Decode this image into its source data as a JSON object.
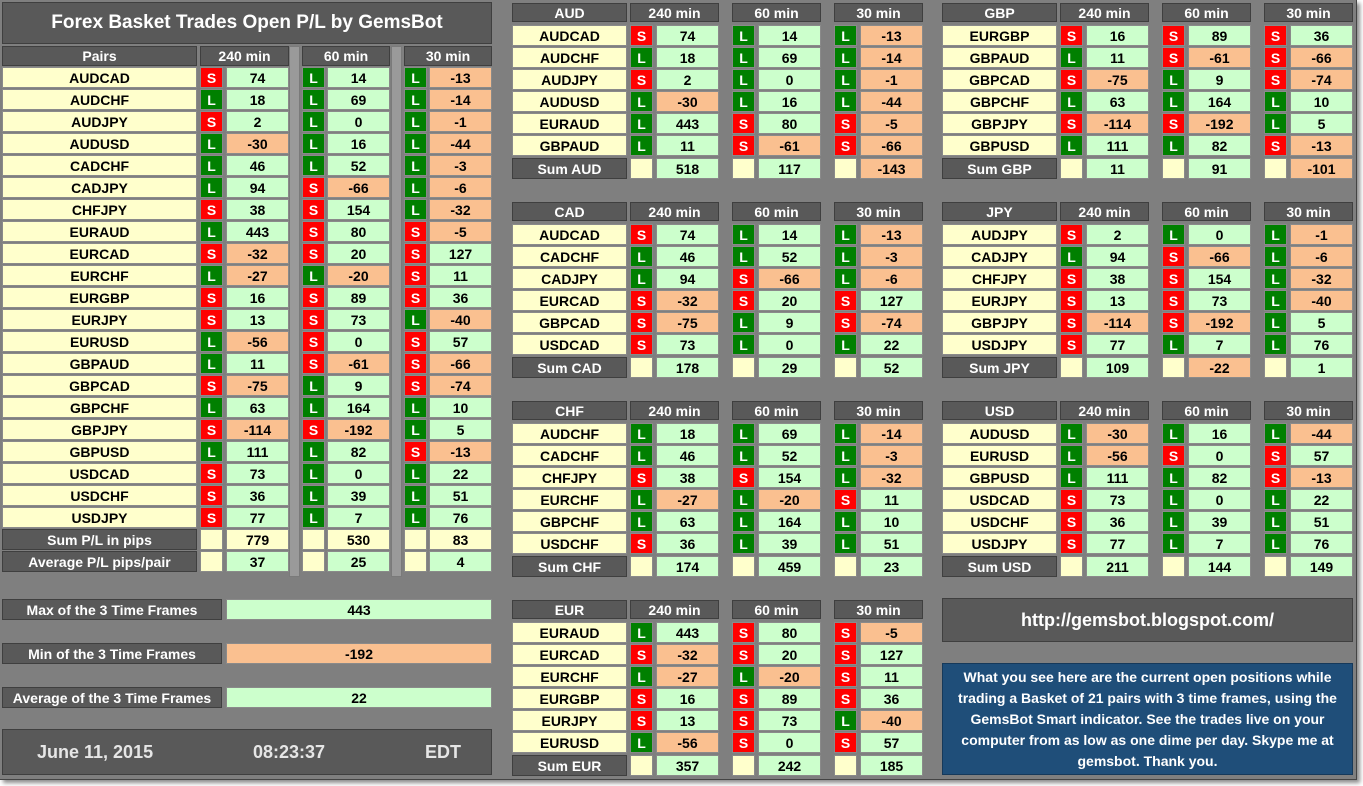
{
  "title": "Forex Basket Trades Open P/L by GemsBot",
  "timeframes": [
    "240 min",
    "60 min",
    "30 min"
  ],
  "main": {
    "header": "Pairs",
    "rows": [
      {
        "pair": "AUDCAD",
        "s": [
          "S",
          "L",
          "L"
        ],
        "v": [
          "74",
          "14",
          "-13"
        ]
      },
      {
        "pair": "AUDCHF",
        "s": [
          "L",
          "L",
          "L"
        ],
        "v": [
          "18",
          "69",
          "-14"
        ]
      },
      {
        "pair": "AUDJPY",
        "s": [
          "S",
          "L",
          "L"
        ],
        "v": [
          "2",
          "0",
          "-1"
        ]
      },
      {
        "pair": "AUDUSD",
        "s": [
          "L",
          "L",
          "L"
        ],
        "v": [
          "-30",
          "16",
          "-44"
        ]
      },
      {
        "pair": "CADCHF",
        "s": [
          "L",
          "L",
          "L"
        ],
        "v": [
          "46",
          "52",
          "-3"
        ]
      },
      {
        "pair": "CADJPY",
        "s": [
          "L",
          "S",
          "L"
        ],
        "v": [
          "94",
          "-66",
          "-6"
        ]
      },
      {
        "pair": "CHFJPY",
        "s": [
          "S",
          "S",
          "L"
        ],
        "v": [
          "38",
          "154",
          "-32"
        ]
      },
      {
        "pair": "EURAUD",
        "s": [
          "L",
          "S",
          "S"
        ],
        "v": [
          "443",
          "80",
          "-5"
        ]
      },
      {
        "pair": "EURCAD",
        "s": [
          "S",
          "S",
          "S"
        ],
        "v": [
          "-32",
          "20",
          "127"
        ]
      },
      {
        "pair": "EURCHF",
        "s": [
          "L",
          "L",
          "S"
        ],
        "v": [
          "-27",
          "-20",
          "11"
        ]
      },
      {
        "pair": "EURGBP",
        "s": [
          "S",
          "S",
          "S"
        ],
        "v": [
          "16",
          "89",
          "36"
        ]
      },
      {
        "pair": "EURJPY",
        "s": [
          "S",
          "S",
          "L"
        ],
        "v": [
          "13",
          "73",
          "-40"
        ]
      },
      {
        "pair": "EURUSD",
        "s": [
          "L",
          "S",
          "S"
        ],
        "v": [
          "-56",
          "0",
          "57"
        ]
      },
      {
        "pair": "GBPAUD",
        "s": [
          "L",
          "S",
          "S"
        ],
        "v": [
          "11",
          "-61",
          "-66"
        ]
      },
      {
        "pair": "GBPCAD",
        "s": [
          "S",
          "L",
          "S"
        ],
        "v": [
          "-75",
          "9",
          "-74"
        ]
      },
      {
        "pair": "GBPCHF",
        "s": [
          "L",
          "L",
          "L"
        ],
        "v": [
          "63",
          "164",
          "10"
        ]
      },
      {
        "pair": "GBPJPY",
        "s": [
          "S",
          "S",
          "L"
        ],
        "v": [
          "-114",
          "-192",
          "5"
        ]
      },
      {
        "pair": "GBPUSD",
        "s": [
          "L",
          "L",
          "S"
        ],
        "v": [
          "111",
          "82",
          "-13"
        ]
      },
      {
        "pair": "USDCAD",
        "s": [
          "S",
          "L",
          "L"
        ],
        "v": [
          "73",
          "0",
          "22"
        ]
      },
      {
        "pair": "USDCHF",
        "s": [
          "S",
          "L",
          "L"
        ],
        "v": [
          "36",
          "39",
          "51"
        ]
      },
      {
        "pair": "USDJPY",
        "s": [
          "S",
          "L",
          "L"
        ],
        "v": [
          "77",
          "7",
          "76"
        ]
      }
    ],
    "sum_label": "Sum P/L in pips",
    "sums": [
      "779",
      "530",
      "83"
    ],
    "avg_label": "Average P/L pips/pair",
    "avgs": [
      "37",
      "25",
      "4"
    ]
  },
  "stats": [
    {
      "label": "Max of the 3 Time Frames",
      "value": "443",
      "tone": "pos"
    },
    {
      "label": "Min of the 3 Time Frames",
      "value": "-192",
      "tone": "neg"
    },
    {
      "label": "Average of the 3 Time Frames",
      "value": "22",
      "tone": "pos"
    }
  ],
  "datetime": {
    "date": "June 11, 2015",
    "time": "08:23:37",
    "tz": "EDT"
  },
  "baskets": [
    {
      "currency": "AUD",
      "sum_label": "Sum AUD",
      "sums": [
        "518",
        "117",
        "-143"
      ],
      "rows": [
        {
          "pair": "AUDCAD",
          "s": [
            "S",
            "L",
            "L"
          ],
          "v": [
            "74",
            "14",
            "-13"
          ]
        },
        {
          "pair": "AUDCHF",
          "s": [
            "L",
            "L",
            "L"
          ],
          "v": [
            "18",
            "69",
            "-14"
          ]
        },
        {
          "pair": "AUDJPY",
          "s": [
            "S",
            "L",
            "L"
          ],
          "v": [
            "2",
            "0",
            "-1"
          ]
        },
        {
          "pair": "AUDUSD",
          "s": [
            "L",
            "L",
            "L"
          ],
          "v": [
            "-30",
            "16",
            "-44"
          ]
        },
        {
          "pair": "EURAUD",
          "s": [
            "L",
            "S",
            "S"
          ],
          "v": [
            "443",
            "80",
            "-5"
          ]
        },
        {
          "pair": "GBPAUD",
          "s": [
            "L",
            "S",
            "S"
          ],
          "v": [
            "11",
            "-61",
            "-66"
          ]
        }
      ]
    },
    {
      "currency": "CAD",
      "sum_label": "Sum CAD",
      "sums": [
        "178",
        "29",
        "52"
      ],
      "rows": [
        {
          "pair": "AUDCAD",
          "s": [
            "S",
            "L",
            "L"
          ],
          "v": [
            "74",
            "14",
            "-13"
          ]
        },
        {
          "pair": "CADCHF",
          "s": [
            "L",
            "L",
            "L"
          ],
          "v": [
            "46",
            "52",
            "-3"
          ]
        },
        {
          "pair": "CADJPY",
          "s": [
            "L",
            "S",
            "L"
          ],
          "v": [
            "94",
            "-66",
            "-6"
          ]
        },
        {
          "pair": "EURCAD",
          "s": [
            "S",
            "S",
            "S"
          ],
          "v": [
            "-32",
            "20",
            "127"
          ]
        },
        {
          "pair": "GBPCAD",
          "s": [
            "S",
            "L",
            "S"
          ],
          "v": [
            "-75",
            "9",
            "-74"
          ]
        },
        {
          "pair": "USDCAD",
          "s": [
            "S",
            "L",
            "L"
          ],
          "v": [
            "73",
            "0",
            "22"
          ]
        }
      ]
    },
    {
      "currency": "CHF",
      "sum_label": "Sum CHF",
      "sums": [
        "174",
        "459",
        "23"
      ],
      "rows": [
        {
          "pair": "AUDCHF",
          "s": [
            "L",
            "L",
            "L"
          ],
          "v": [
            "18",
            "69",
            "-14"
          ]
        },
        {
          "pair": "CADCHF",
          "s": [
            "L",
            "L",
            "L"
          ],
          "v": [
            "46",
            "52",
            "-3"
          ]
        },
        {
          "pair": "CHFJPY",
          "s": [
            "S",
            "S",
            "L"
          ],
          "v": [
            "38",
            "154",
            "-32"
          ]
        },
        {
          "pair": "EURCHF",
          "s": [
            "L",
            "L",
            "S"
          ],
          "v": [
            "-27",
            "-20",
            "11"
          ]
        },
        {
          "pair": "GBPCHF",
          "s": [
            "L",
            "L",
            "L"
          ],
          "v": [
            "63",
            "164",
            "10"
          ]
        },
        {
          "pair": "USDCHF",
          "s": [
            "S",
            "L",
            "L"
          ],
          "v": [
            "36",
            "39",
            "51"
          ]
        }
      ]
    },
    {
      "currency": "EUR",
      "sum_label": "Sum EUR",
      "sums": [
        "357",
        "242",
        "185"
      ],
      "rows": [
        {
          "pair": "EURAUD",
          "s": [
            "L",
            "S",
            "S"
          ],
          "v": [
            "443",
            "80",
            "-5"
          ]
        },
        {
          "pair": "EURCAD",
          "s": [
            "S",
            "S",
            "S"
          ],
          "v": [
            "-32",
            "20",
            "127"
          ]
        },
        {
          "pair": "EURCHF",
          "s": [
            "L",
            "L",
            "S"
          ],
          "v": [
            "-27",
            "-20",
            "11"
          ]
        },
        {
          "pair": "EURGBP",
          "s": [
            "S",
            "S",
            "S"
          ],
          "v": [
            "16",
            "89",
            "36"
          ]
        },
        {
          "pair": "EURJPY",
          "s": [
            "S",
            "S",
            "L"
          ],
          "v": [
            "13",
            "73",
            "-40"
          ]
        },
        {
          "pair": "EURUSD",
          "s": [
            "L",
            "S",
            "S"
          ],
          "v": [
            "-56",
            "0",
            "57"
          ]
        }
      ]
    },
    {
      "currency": "GBP",
      "sum_label": "Sum GBP",
      "sums": [
        "11",
        "91",
        "-101"
      ],
      "rows": [
        {
          "pair": "EURGBP",
          "s": [
            "S",
            "S",
            "S"
          ],
          "v": [
            "16",
            "89",
            "36"
          ]
        },
        {
          "pair": "GBPAUD",
          "s": [
            "L",
            "S",
            "S"
          ],
          "v": [
            "11",
            "-61",
            "-66"
          ]
        },
        {
          "pair": "GBPCAD",
          "s": [
            "S",
            "L",
            "S"
          ],
          "v": [
            "-75",
            "9",
            "-74"
          ]
        },
        {
          "pair": "GBPCHF",
          "s": [
            "L",
            "L",
            "L"
          ],
          "v": [
            "63",
            "164",
            "10"
          ]
        },
        {
          "pair": "GBPJPY",
          "s": [
            "S",
            "S",
            "L"
          ],
          "v": [
            "-114",
            "-192",
            "5"
          ]
        },
        {
          "pair": "GBPUSD",
          "s": [
            "L",
            "L",
            "S"
          ],
          "v": [
            "111",
            "82",
            "-13"
          ]
        }
      ]
    },
    {
      "currency": "JPY",
      "sum_label": "Sum JPY",
      "sums": [
        "109",
        "-22",
        "1"
      ],
      "rows": [
        {
          "pair": "AUDJPY",
          "s": [
            "S",
            "L",
            "L"
          ],
          "v": [
            "2",
            "0",
            "-1"
          ]
        },
        {
          "pair": "CADJPY",
          "s": [
            "L",
            "S",
            "L"
          ],
          "v": [
            "94",
            "-66",
            "-6"
          ]
        },
        {
          "pair": "CHFJPY",
          "s": [
            "S",
            "S",
            "L"
          ],
          "v": [
            "38",
            "154",
            "-32"
          ]
        },
        {
          "pair": "EURJPY",
          "s": [
            "S",
            "S",
            "L"
          ],
          "v": [
            "13",
            "73",
            "-40"
          ]
        },
        {
          "pair": "GBPJPY",
          "s": [
            "S",
            "S",
            "L"
          ],
          "v": [
            "-114",
            "-192",
            "5"
          ]
        },
        {
          "pair": "USDJPY",
          "s": [
            "S",
            "L",
            "L"
          ],
          "v": [
            "77",
            "7",
            "76"
          ]
        }
      ]
    },
    {
      "currency": "USD",
      "sum_label": "Sum USD",
      "sums": [
        "211",
        "144",
        "149"
      ],
      "rows": [
        {
          "pair": "AUDUSD",
          "s": [
            "L",
            "L",
            "L"
          ],
          "v": [
            "-30",
            "16",
            "-44"
          ]
        },
        {
          "pair": "EURUSD",
          "s": [
            "L",
            "S",
            "S"
          ],
          "v": [
            "-56",
            "0",
            "57"
          ]
        },
        {
          "pair": "GBPUSD",
          "s": [
            "L",
            "L",
            "S"
          ],
          "v": [
            "111",
            "82",
            "-13"
          ]
        },
        {
          "pair": "USDCAD",
          "s": [
            "S",
            "L",
            "L"
          ],
          "v": [
            "73",
            "0",
            "22"
          ]
        },
        {
          "pair": "USDCHF",
          "s": [
            "S",
            "L",
            "L"
          ],
          "v": [
            "36",
            "39",
            "51"
          ]
        },
        {
          "pair": "USDJPY",
          "s": [
            "S",
            "L",
            "L"
          ],
          "v": [
            "77",
            "7",
            "76"
          ]
        }
      ]
    }
  ],
  "url": "http://gemsbot.blogspot.com/",
  "info_text": "What you see here are the current open positions while trading a Basket of 21 pairs with 3 time frames, using the GemsBot Smart indicator. See the trades live on your computer from as low as one dime per day. Skype me at gemsbot. Thank you.",
  "colors": {
    "short": "#ff0000",
    "long": "#008000",
    "positive": "#ccffcc",
    "negative": "#fac090",
    "pair": "#ffffcc",
    "header": "#595959",
    "info": "#1f4e79"
  }
}
